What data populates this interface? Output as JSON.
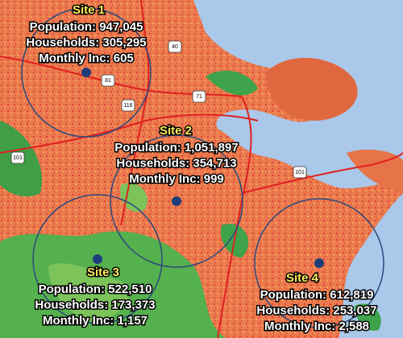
{
  "sites": [
    {
      "name": "Site 1",
      "population": "Population: 947,045",
      "households": "Households: 305,295",
      "income": "Monthly Inc: 605"
    },
    {
      "name": "Site 2",
      "population": "Population: 1,051,897",
      "households": "Households: 354,713",
      "income": "Monthly Inc: 999"
    },
    {
      "name": "Site 3",
      "population": "Population: 522,510",
      "households": "Households: 173,373",
      "income": "Monthly Inc: 1,157"
    },
    {
      "name": "Site 4",
      "population": "Population: 612,819",
      "households": "Households: 253,037",
      "income": "Monthly Inc: 2,588"
    }
  ],
  "road_shields": [
    "40",
    "81",
    "116",
    "71",
    "101",
    "101"
  ]
}
